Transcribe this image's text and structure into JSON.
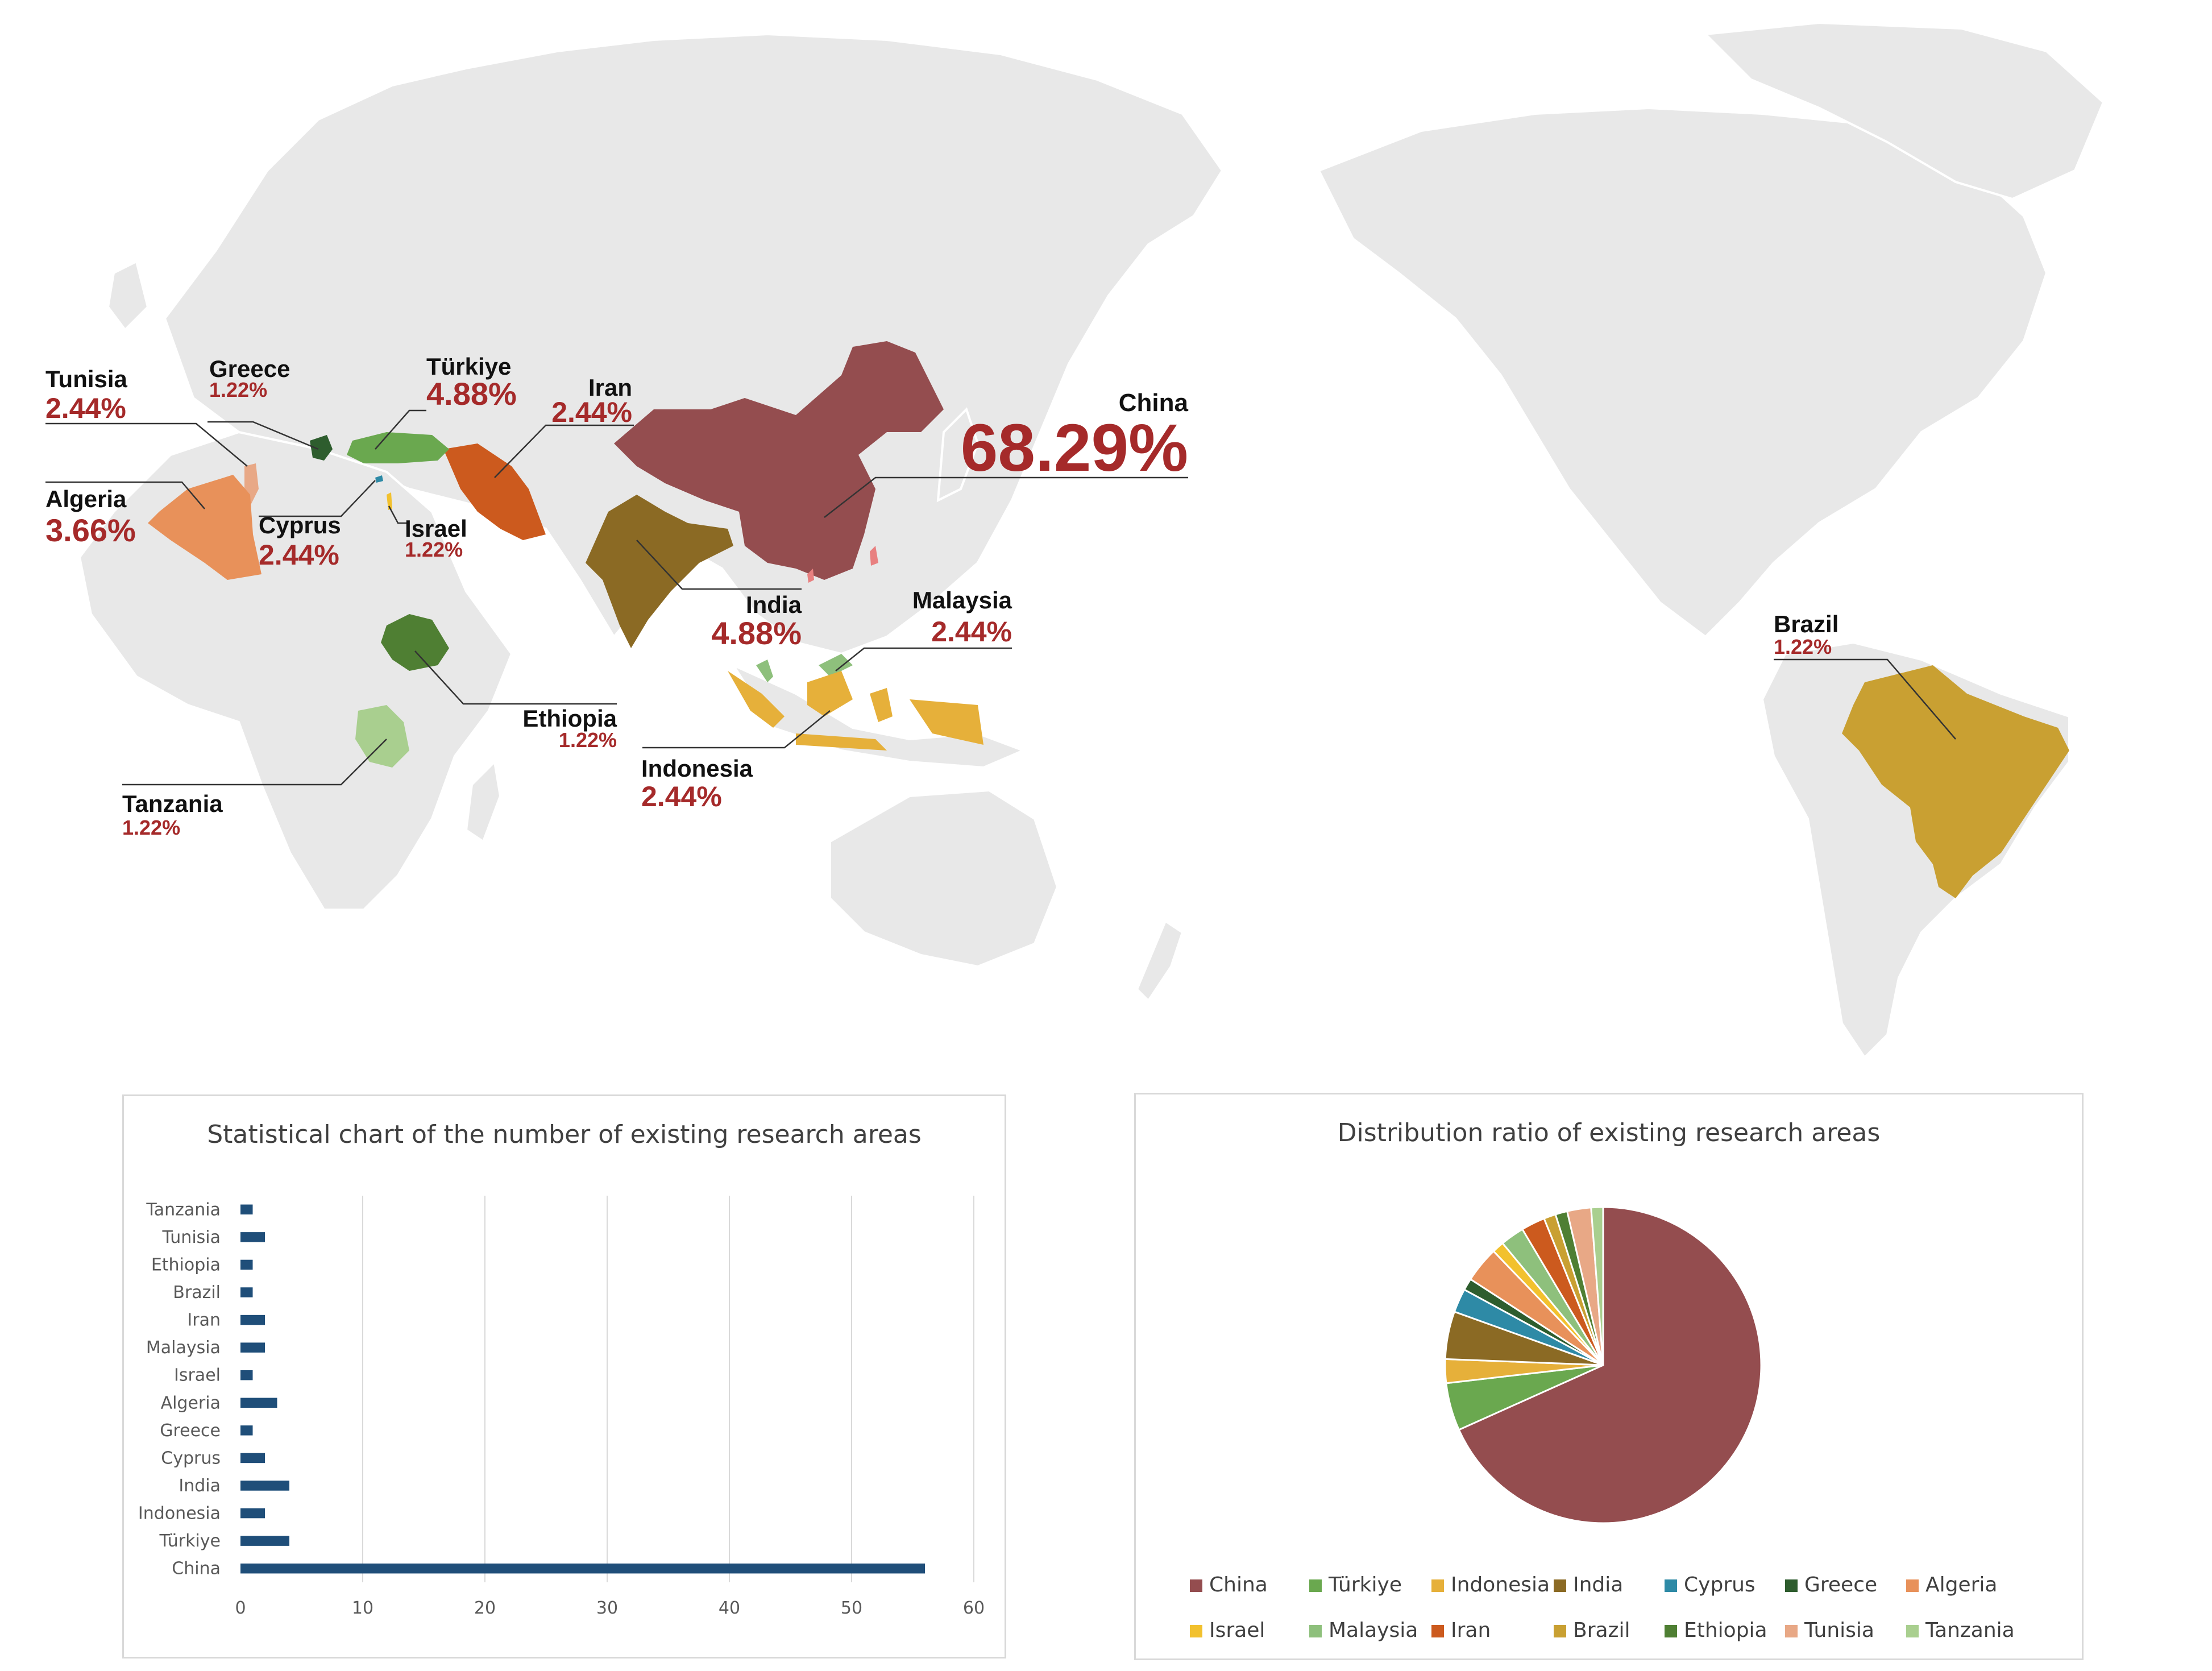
{
  "map": {
    "land_color": "#e8e8e8",
    "border_color": "#ffffff",
    "leader_color": "#333333",
    "labels": [
      {
        "name": "Tunisia",
        "pct": "2.44%",
        "color": "#e8a886"
      },
      {
        "name": "Greece",
        "pct": "1.22%",
        "color": "#2e5d2e"
      },
      {
        "name": "Türkiye",
        "pct": "4.88%",
        "color": "#6aa84f"
      },
      {
        "name": "Iran",
        "pct": "2.44%",
        "color": "#cc5a1e"
      },
      {
        "name": "China",
        "pct": "68.29%",
        "color": "#944d4f"
      },
      {
        "name": "Algeria",
        "pct": "3.66%",
        "color": "#e8915a"
      },
      {
        "name": "Cyprus",
        "pct": "2.44%",
        "color": "#3b8fb0"
      },
      {
        "name": "Israel",
        "pct": "1.22%",
        "color": "#f2c12e"
      },
      {
        "name": "India",
        "pct": "4.88%",
        "color": "#8b6a24"
      },
      {
        "name": "Malaysia",
        "pct": "2.44%",
        "color": "#8ec07c"
      },
      {
        "name": "Ethiopia",
        "pct": "1.22%",
        "color": "#4f7f33"
      },
      {
        "name": "Indonesia",
        "pct": "2.44%",
        "color": "#e6b03a"
      },
      {
        "name": "Tanzania",
        "pct": "1.22%",
        "color": "#a9cf8f"
      },
      {
        "name": "Brazil",
        "pct": "1.22%",
        "color": "#c9a032"
      }
    ]
  },
  "bar_chart": {
    "title": "Statistical chart of the number of existing research areas",
    "bar_color": "#1f4e79"
  },
  "pie_chart": {
    "title": "Distribution ratio of existing research areas"
  },
  "chart_data": [
    {
      "type": "bar",
      "orientation": "horizontal",
      "title": "Statistical chart of the number of existing research areas",
      "categories": [
        "China",
        "Türkiye",
        "Indonesia",
        "India",
        "Cyprus",
        "Greece",
        "Algeria",
        "Israel",
        "Malaysia",
        "Iran",
        "Brazil",
        "Ethiopia",
        "Tunisia",
        "Tanzania"
      ],
      "values": [
        56,
        4,
        2,
        4,
        2,
        1,
        3,
        1,
        2,
        2,
        1,
        1,
        2,
        1
      ],
      "xlim": [
        0,
        60
      ],
      "xticks": [
        0,
        10,
        20,
        30,
        40,
        50,
        60
      ],
      "grid": true,
      "xlabel": "",
      "ylabel": ""
    },
    {
      "type": "pie",
      "title": "Distribution ratio of existing research areas",
      "categories": [
        "China",
        "Türkiye",
        "Indonesia",
        "India",
        "Cyprus",
        "Greece",
        "Algeria",
        "Israel",
        "Malaysia",
        "Iran",
        "Brazil",
        "Ethiopia",
        "Tunisia",
        "Tanzania"
      ],
      "values": [
        56,
        4,
        2,
        4,
        2,
        1,
        3,
        1,
        2,
        2,
        1,
        1,
        2,
        1
      ],
      "colors": [
        "#944d4f",
        "#6aa84f",
        "#e6b03a",
        "#8b6a24",
        "#2e8aa6",
        "#2e5d2e",
        "#e8915a",
        "#f2c12e",
        "#8ec07c",
        "#cc5a1e",
        "#c9a032",
        "#4f7f33",
        "#e8a886",
        "#a9cf8f"
      ],
      "legend_position": "bottom"
    }
  ]
}
